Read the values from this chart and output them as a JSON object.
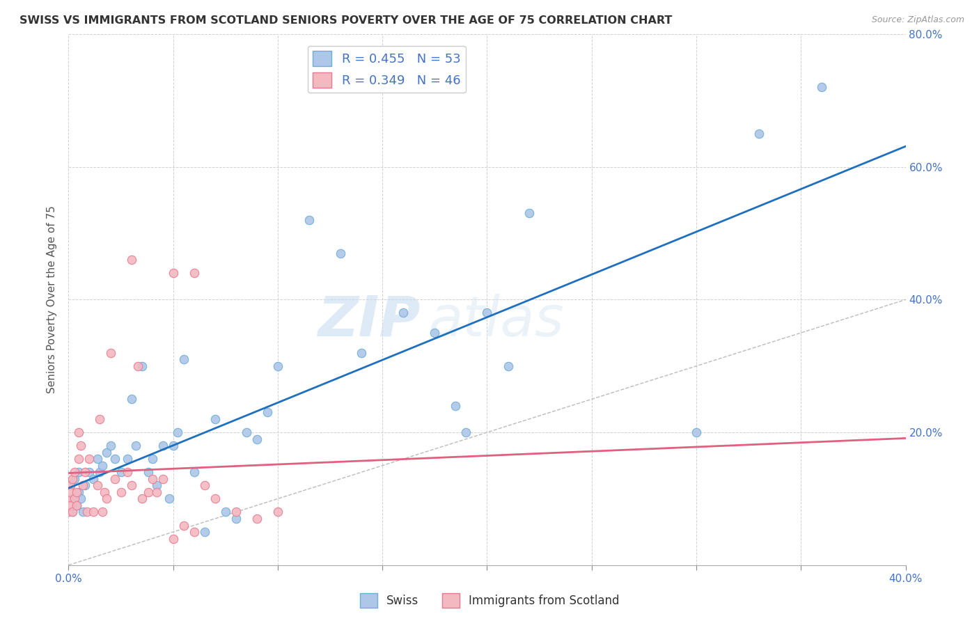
{
  "title": "SWISS VS IMMIGRANTS FROM SCOTLAND SENIORS POVERTY OVER THE AGE OF 75 CORRELATION CHART",
  "source": "Source: ZipAtlas.com",
  "ylabel": "Seniors Poverty Over the Age of 75",
  "xlim": [
    0.0,
    0.4
  ],
  "ylim": [
    0.0,
    0.8
  ],
  "x_ticks": [
    0.0,
    0.05,
    0.1,
    0.15,
    0.2,
    0.25,
    0.3,
    0.35,
    0.4
  ],
  "y_ticks": [
    0.0,
    0.2,
    0.4,
    0.6,
    0.8
  ],
  "background_color": "#ffffff",
  "swiss_color": "#aec6e8",
  "scotland_color": "#f4b8c1",
  "swiss_line_color": "#1f6fbf",
  "scotland_line_color": "#e06080",
  "swiss_edge_color": "#6baed6",
  "scotland_edge_color": "#e87a90",
  "swiss_R": 0.455,
  "swiss_N": 53,
  "scotland_R": 0.349,
  "scotland_N": 46,
  "swiss_scatter_x": [
    0.001,
    0.002,
    0.002,
    0.003,
    0.004,
    0.005,
    0.005,
    0.006,
    0.007,
    0.008,
    0.01,
    0.012,
    0.014,
    0.015,
    0.016,
    0.018,
    0.02,
    0.022,
    0.025,
    0.028,
    0.03,
    0.032,
    0.035,
    0.038,
    0.04,
    0.042,
    0.045,
    0.048,
    0.05,
    0.052,
    0.055,
    0.06,
    0.065,
    0.07,
    0.075,
    0.08,
    0.085,
    0.09,
    0.095,
    0.1,
    0.115,
    0.13,
    0.14,
    0.16,
    0.175,
    0.185,
    0.19,
    0.2,
    0.21,
    0.22,
    0.3,
    0.33,
    0.36
  ],
  "swiss_scatter_y": [
    0.12,
    0.08,
    0.1,
    0.13,
    0.09,
    0.11,
    0.14,
    0.1,
    0.08,
    0.12,
    0.14,
    0.13,
    0.16,
    0.14,
    0.15,
    0.17,
    0.18,
    0.16,
    0.14,
    0.16,
    0.25,
    0.18,
    0.3,
    0.14,
    0.16,
    0.12,
    0.18,
    0.1,
    0.18,
    0.2,
    0.31,
    0.14,
    0.05,
    0.22,
    0.08,
    0.07,
    0.2,
    0.19,
    0.23,
    0.3,
    0.52,
    0.47,
    0.32,
    0.38,
    0.35,
    0.24,
    0.2,
    0.38,
    0.3,
    0.53,
    0.2,
    0.65,
    0.72
  ],
  "scotland_scatter_x": [
    0.0,
    0.0,
    0.001,
    0.001,
    0.001,
    0.002,
    0.002,
    0.003,
    0.003,
    0.004,
    0.004,
    0.005,
    0.005,
    0.006,
    0.007,
    0.008,
    0.009,
    0.01,
    0.012,
    0.014,
    0.015,
    0.016,
    0.017,
    0.018,
    0.02,
    0.022,
    0.025,
    0.028,
    0.03,
    0.033,
    0.035,
    0.038,
    0.04,
    0.042,
    0.045,
    0.05,
    0.055,
    0.06,
    0.065,
    0.07,
    0.08,
    0.09,
    0.1,
    0.06,
    0.05,
    0.03
  ],
  "scotland_scatter_y": [
    0.1,
    0.08,
    0.12,
    0.09,
    0.11,
    0.08,
    0.13,
    0.1,
    0.14,
    0.09,
    0.11,
    0.2,
    0.16,
    0.18,
    0.12,
    0.14,
    0.08,
    0.16,
    0.08,
    0.12,
    0.22,
    0.08,
    0.11,
    0.1,
    0.32,
    0.13,
    0.11,
    0.14,
    0.12,
    0.3,
    0.1,
    0.11,
    0.13,
    0.11,
    0.13,
    0.04,
    0.06,
    0.05,
    0.12,
    0.1,
    0.08,
    0.07,
    0.08,
    0.44,
    0.44,
    0.46
  ],
  "watermark_zip": "ZIP",
  "watermark_atlas": "atlas",
  "legend_label_swiss": "Swiss",
  "legend_label_scotland": "Immigrants from Scotland",
  "title_fontsize": 11.5,
  "label_fontsize": 11,
  "tick_fontsize": 11,
  "legend_fontsize": 13,
  "tick_color": "#4472c4"
}
